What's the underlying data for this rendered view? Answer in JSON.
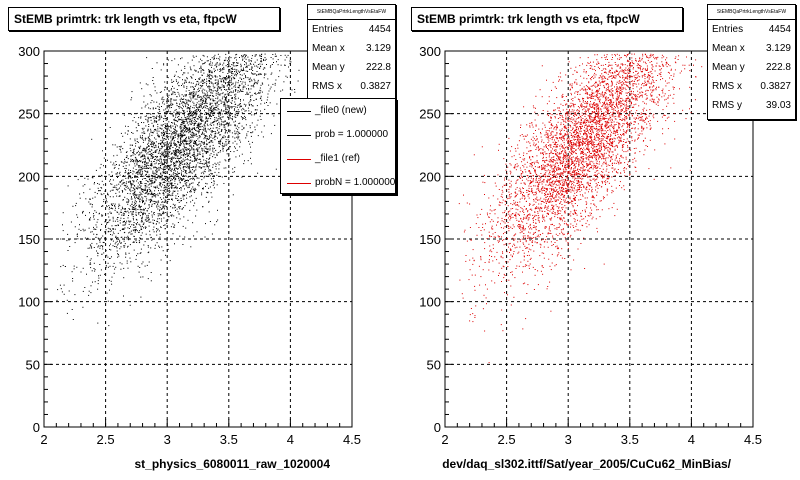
{
  "colors": {
    "new": "#000000",
    "ref": "#dd0000",
    "grid": "#000000"
  },
  "chart_data": [
    {
      "type": "scatter",
      "title": "StEMB primtrk: trk length vs eta, ftpcW",
      "xlabel": "st_physics_6080011_raw_1020004",
      "ylabel": "",
      "xlim": [
        2,
        4.5
      ],
      "ylim": [
        0,
        300
      ],
      "x_ticks": [
        "2",
        "2.5",
        "3",
        "3.5",
        "4",
        "4.5"
      ],
      "y_ticks": [
        "0",
        "50",
        "100",
        "150",
        "200",
        "250",
        "300"
      ],
      "grid": true,
      "point_color": "#000000",
      "point_count": 4454,
      "stats": {
        "name": "StEMBQaPrtrkLengthVsEtaFW",
        "rows": [
          {
            "label": "Entries",
            "value": "4454"
          },
          {
            "label": "Mean x",
            "value": "3.129"
          },
          {
            "label": "Mean y",
            "value": "222.8"
          },
          {
            "label": "RMS x",
            "value": "0.3827"
          }
        ]
      },
      "legend": [
        {
          "label": "_file0 (new)",
          "color": "#000000"
        },
        {
          "label": "prob = 1.000000",
          "color": "#000000"
        },
        {
          "label": "_file1 (ref)",
          "color": "#dd0000"
        },
        {
          "label": "probN = 1.000000",
          "color": "#dd0000"
        }
      ]
    },
    {
      "type": "scatter",
      "title": "StEMB primtrk: trk length vs eta, ftpcW",
      "xlabel": "dev/daq_sl302.ittf/Sat/year_2005/CuCu62_MinBias/",
      "ylabel": "",
      "xlim": [
        2,
        4.5
      ],
      "ylim": [
        0,
        300
      ],
      "x_ticks": [
        "2",
        "2.5",
        "3",
        "3.5",
        "4",
        "4.5"
      ],
      "y_ticks": [
        "0",
        "50",
        "100",
        "150",
        "200",
        "250",
        "300"
      ],
      "grid": true,
      "point_color": "#dd0000",
      "point_count": 4454,
      "stats": {
        "name": "StEMBQaPrtrkLengthVsEtaFW",
        "rows": [
          {
            "label": "Entries",
            "value": "4454"
          },
          {
            "label": "Mean x",
            "value": "3.129"
          },
          {
            "label": "Mean y",
            "value": "222.8"
          },
          {
            "label": "RMS x",
            "value": "0.3827"
          },
          {
            "label": "RMS y",
            "value": "39.03"
          }
        ]
      }
    }
  ]
}
